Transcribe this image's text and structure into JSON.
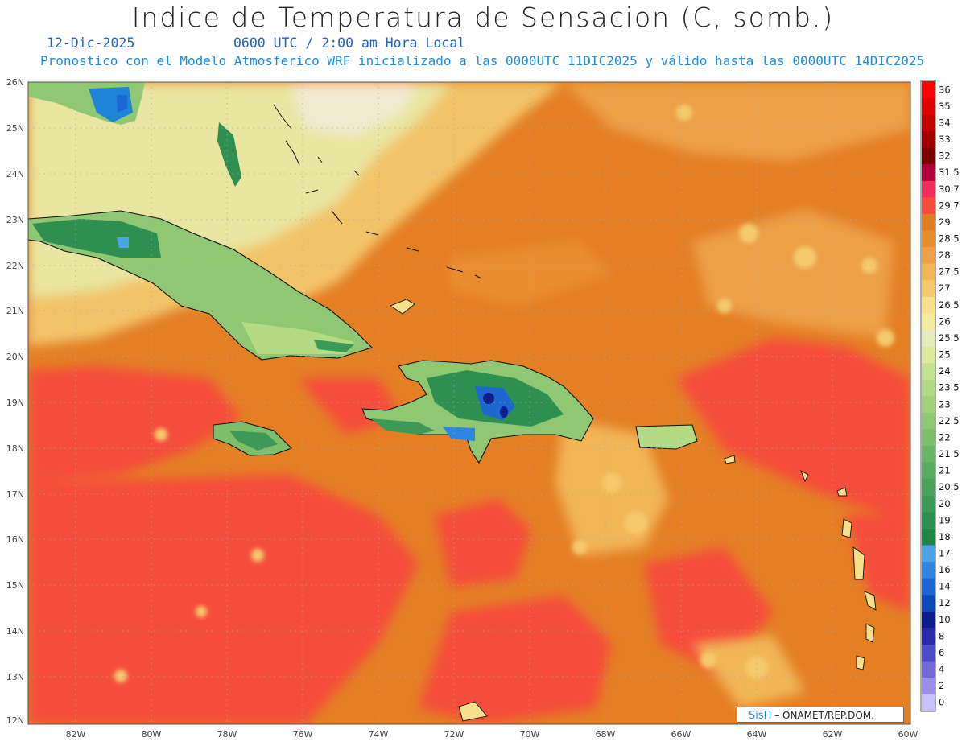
{
  "title": "Indice de Temperatura de Sensacion (C, somb.)",
  "date_label": "12-Dic-2025",
  "time_label": "0600 UTC / 2:00 am Hora Local",
  "model_label": "Pronostico con el Modelo Atmosferico WRF inicializado a las 0000UTC_11DIC2025 y válido hasta las  0000UTC_14DIC2025",
  "credit": {
    "brand": "SisΠ",
    "text": " – ONAMET/REP.DOM."
  },
  "map": {
    "lat_ticks": [
      "26N",
      "25N",
      "24N",
      "23N",
      "22N",
      "21N",
      "20N",
      "19N",
      "18N",
      "17N",
      "16N",
      "15N",
      "14N",
      "13N",
      "12N"
    ],
    "lon_ticks": [
      "82W",
      "80W",
      "78W",
      "76W",
      "74W",
      "72W",
      "70W",
      "68W",
      "66W",
      "64W",
      "62W",
      "60W"
    ],
    "lat_range": [
      12,
      26
    ],
    "lon_range": [
      -83.3,
      -60
    ],
    "grid": true,
    "field_colors": {
      "ocean_warm": "#e47f24",
      "ocean_hot": "#f54d3a",
      "mild": "#f2c46b",
      "cool": "#e8e6a0",
      "land_green": "#3ea955",
      "land_light": "#b8dc84",
      "highlands_blue": "#1e6fd6"
    }
  },
  "colorbar": {
    "levels": [
      "36",
      "35",
      "34",
      "33",
      "32",
      "31.5",
      "30.7",
      "29.7",
      "29",
      "28.5",
      "28",
      "27.5",
      "27",
      "26.5",
      "26",
      "25.5",
      "25",
      "24",
      "23.5",
      "23",
      "22.5",
      "22",
      "21.5",
      "21",
      "20.5",
      "20",
      "19",
      "18",
      "17",
      "16",
      "14",
      "12",
      "10",
      "8",
      "6",
      "4",
      "2",
      "0"
    ],
    "colors": [
      "#ff0000",
      "#e00000",
      "#c40000",
      "#a00000",
      "#7d0000",
      "#b0003a",
      "#f02d5c",
      "#f54d3a",
      "#e27c22",
      "#e98e2e",
      "#eda047",
      "#f2b657",
      "#f4ca6d",
      "#f7e08c",
      "#f1ec9e",
      "#e4ecbf",
      "#dbeb9a",
      "#c5e38e",
      "#b4da84",
      "#a2d17a",
      "#8fc772",
      "#7cbe6a",
      "#6ab565",
      "#57ab5f",
      "#4aa25b",
      "#3d9a56",
      "#2e8f50",
      "#1f8446",
      "#4ba3e8",
      "#2f86e0",
      "#1c67d2",
      "#0d4ab8",
      "#0b1f8c",
      "#2a2aa8",
      "#4d4bc6",
      "#7468d8",
      "#9a8eea",
      "#c7c2f5"
    ]
  }
}
